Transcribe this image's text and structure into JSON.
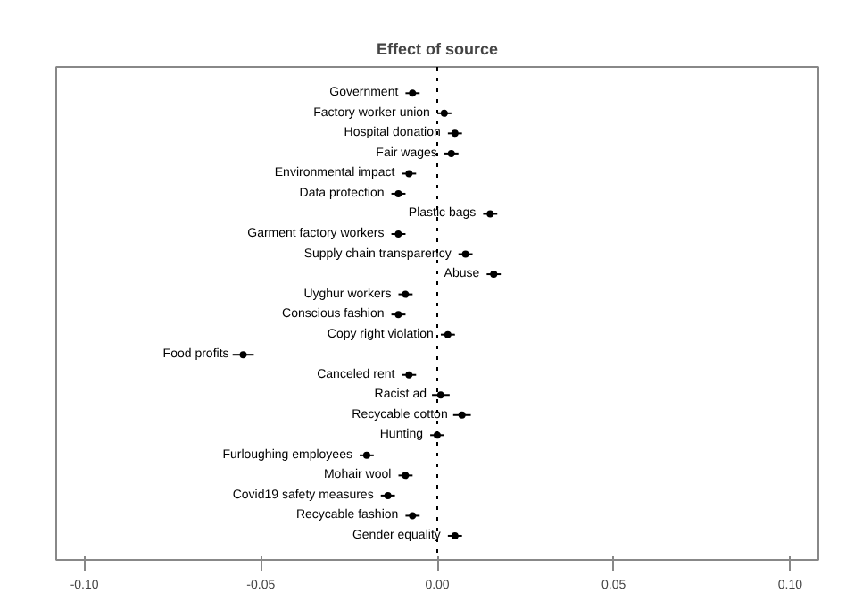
{
  "chart_data": {
    "type": "scatter",
    "orientation": "horizontal",
    "title": "Effect of source",
    "categories": [
      "Government",
      "Factory worker union",
      "Hospital donation",
      "Fair wages",
      "Environmental impact",
      "Data protection",
      "Plastic bags",
      "Garment factory workers",
      "Supply chain transparency",
      "Abuse",
      "Uyghur workers",
      "Conscious fashion",
      "Copy right violation",
      "Food profits",
      "Canceled rent",
      "Racist ad",
      "Recycable cotton",
      "Hunting",
      "Furloughing employees",
      "Mohair wool",
      "Covid19 safety measures",
      "Recycable fashion",
      "Gender equality"
    ],
    "series": [
      {
        "color": "#000000",
        "values": [
          -0.007,
          0.002,
          0.005,
          0.004,
          -0.008,
          -0.011,
          0.015,
          -0.011,
          0.008,
          0.016,
          -0.009,
          -0.011,
          0.003,
          -0.055,
          -0.008,
          0.001,
          0.007,
          0.0,
          -0.02,
          -0.009,
          -0.014,
          -0.007,
          0.005
        ],
        "errors": [
          0.002,
          0.002,
          0.002,
          0.002,
          0.002,
          0.002,
          0.002,
          0.002,
          0.002,
          0.002,
          0.002,
          0.002,
          0.002,
          0.003,
          0.002,
          0.0025,
          0.0025,
          0.002,
          0.002,
          0.002,
          0.002,
          0.002,
          0.002
        ]
      }
    ],
    "xlim": [
      -0.108,
      0.108
    ],
    "xticks": [
      {
        "value": -0.1,
        "label": "-0.10"
      },
      {
        "value": -0.05,
        "label": "-0.05"
      },
      {
        "value": 0,
        "label": "0.00"
      },
      {
        "value": 0.05,
        "label": "0.05"
      },
      {
        "value": 0.1,
        "label": "0.10"
      }
    ],
    "ref_lines": [
      {
        "axis": "x",
        "value": 0,
        "line_style": "dotted",
        "color": "#000000"
      }
    ],
    "marker": "circle",
    "grid": false,
    "tick_labels": "x"
  }
}
